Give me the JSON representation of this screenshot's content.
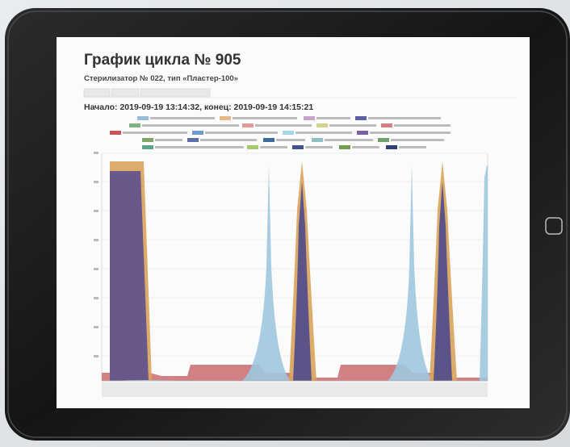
{
  "screen": {
    "title": "График цикла № 905",
    "subtitle": "Стерилизатор № 022, тип «Пластер-100»",
    "period": "Начало: 2019-09-19 13:14:32, конец: 2019-09-19 14:15:21"
  }
}
